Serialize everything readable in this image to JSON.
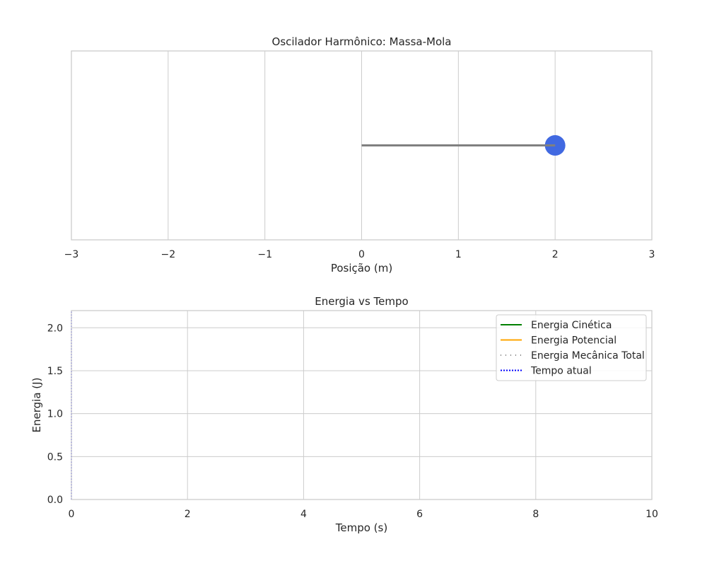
{
  "chart_data": [
    {
      "type": "scatter",
      "title": "Oscilador Harmônico: Massa-Mola",
      "xlabel": "Posição (m)",
      "ylabel": "",
      "xlim": [
        -3,
        3
      ],
      "xticks": [
        "−3",
        "−2",
        "−1",
        "0",
        "1",
        "2",
        "3"
      ],
      "xtick_values": [
        -3,
        -2,
        -1,
        0,
        1,
        2,
        3
      ],
      "grid": true,
      "spring": {
        "from": 0,
        "to": 2,
        "color": "#808080"
      },
      "mass": {
        "x": 2,
        "color": "#4169e1"
      }
    },
    {
      "type": "line",
      "title": "Energia vs Tempo",
      "xlabel": "Tempo (s)",
      "ylabel": "Energia (J)",
      "xlim": [
        0,
        10
      ],
      "ylim": [
        0,
        2.2
      ],
      "xticks": [
        "0",
        "2",
        "4",
        "6",
        "8",
        "10"
      ],
      "xtick_values": [
        0,
        2,
        4,
        6,
        8,
        10
      ],
      "yticks": [
        "0.0",
        "0.5",
        "1.0",
        "1.5",
        "2.0"
      ],
      "ytick_values": [
        0,
        0.5,
        1.0,
        1.5,
        2.0
      ],
      "grid": true,
      "legend_position": "top-right",
      "series": [
        {
          "name": "Energia Cinética",
          "color": "#008000",
          "style": "solid",
          "x": [],
          "values": []
        },
        {
          "name": "Energia Potencial",
          "color": "#ffa500",
          "style": "solid",
          "x": [],
          "values": []
        },
        {
          "name": "Energia Mecânica Total",
          "color": "#000000",
          "style": "dotted",
          "x": [],
          "values": []
        },
        {
          "name": "Tempo atual",
          "color": "#0000ff",
          "style": "dotted",
          "x": [
            0,
            0
          ],
          "values": [
            0,
            2.2
          ]
        }
      ]
    }
  ]
}
